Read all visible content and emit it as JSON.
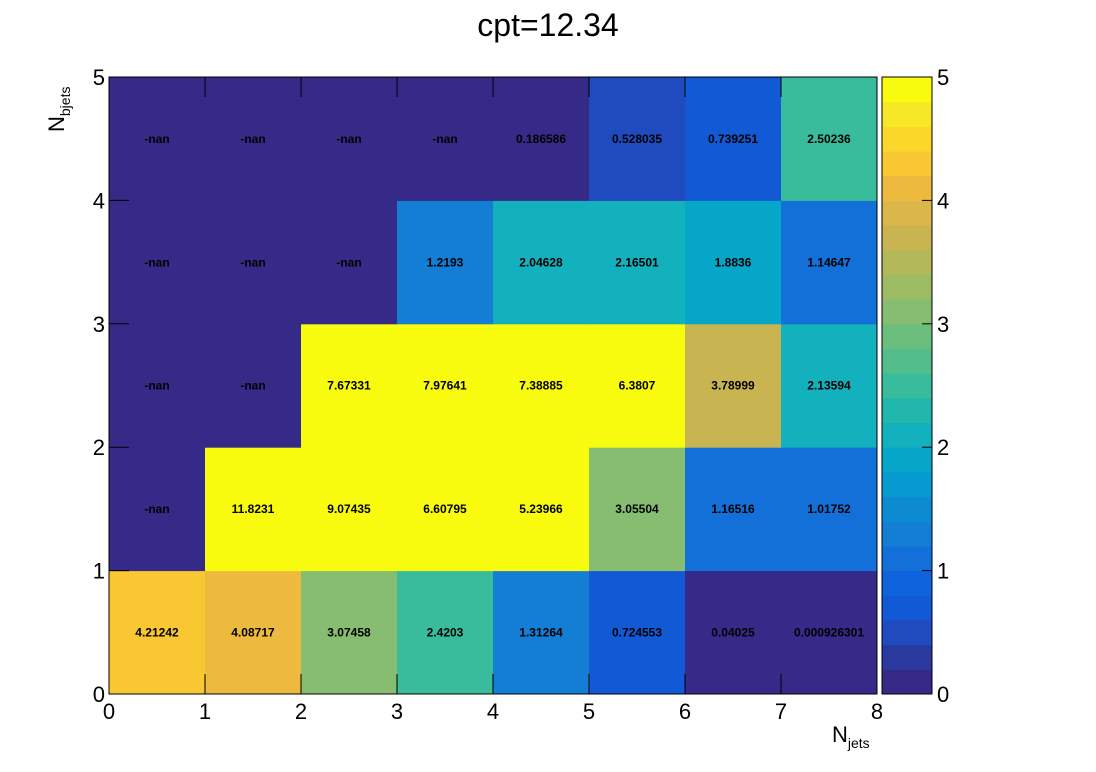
{
  "chart_data": {
    "type": "heatmap",
    "title": "cpt=12.34",
    "xlabel": "N",
    "xlabel_sub": "jets",
    "ylabel": "N",
    "ylabel_sub": "bjets",
    "xlim": [
      0,
      8
    ],
    "ylim": [
      0,
      5
    ],
    "x_ticks": [
      "0",
      "1",
      "2",
      "3",
      "4",
      "5",
      "6",
      "7",
      "8"
    ],
    "y_ticks": [
      "0",
      "1",
      "2",
      "3",
      "4",
      "5"
    ],
    "colorbar": {
      "range": [
        0,
        5
      ],
      "ticks": [
        "0",
        "1",
        "2",
        "3",
        "4",
        "5"
      ]
    },
    "rows": [
      {
        "y_bin": [
          0,
          1
        ],
        "values": [
          4.21242,
          4.08717,
          3.07458,
          2.4203,
          1.31264,
          0.724553,
          0.04025,
          0.000926301
        ],
        "labels": [
          "4.21242",
          "4.08717",
          "3.07458",
          "2.4203",
          "1.31264",
          "0.724553",
          "0.04025",
          "0.000926301"
        ]
      },
      {
        "y_bin": [
          1,
          2
        ],
        "values": [
          null,
          11.8231,
          9.07435,
          6.60795,
          5.23966,
          3.05504,
          1.16516,
          1.01752
        ],
        "labels": [
          "-nan",
          "11.8231",
          "9.07435",
          "6.60795",
          "5.23966",
          "3.05504",
          "1.16516",
          "1.01752"
        ]
      },
      {
        "y_bin": [
          2,
          3
        ],
        "values": [
          null,
          null,
          7.67331,
          7.97641,
          7.38885,
          6.3807,
          3.78999,
          2.13594
        ],
        "labels": [
          "-nan",
          "-nan",
          "7.67331",
          "7.97641",
          "7.38885",
          "6.3807",
          "3.78999",
          "2.13594"
        ]
      },
      {
        "y_bin": [
          3,
          4
        ],
        "values": [
          null,
          null,
          null,
          1.2193,
          2.04628,
          2.16501,
          1.8836,
          1.14647
        ],
        "labels": [
          "-nan",
          "-nan",
          "-nan",
          "1.2193",
          "2.04628",
          "2.16501",
          "1.8836",
          "1.14647"
        ]
      },
      {
        "y_bin": [
          4,
          5
        ],
        "values": [
          null,
          null,
          null,
          null,
          0.186586,
          0.528035,
          0.739251,
          2.50236
        ],
        "labels": [
          "-nan",
          "-nan",
          "-nan",
          "-nan",
          "0.186586",
          "0.528035",
          "0.739251",
          "2.50236"
        ]
      }
    ],
    "palette": [
      "#352a87",
      "#2a3a9f",
      "#1f4bbf",
      "#1259d6",
      "#0f64dd",
      "#1370d8",
      "#137ed4",
      "#0d8bd1",
      "#079ad0",
      "#06a6c9",
      "#13b0bd",
      "#21b7ad",
      "#38bc9b",
      "#53be8b",
      "#6cbe7d",
      "#86bd70",
      "#9dbb63",
      "#b3b85a",
      "#c8b552",
      "#dbb64b",
      "#edba3f",
      "#f8c731",
      "#fbd729",
      "#f7e827",
      "#f9fb0e"
    ]
  }
}
